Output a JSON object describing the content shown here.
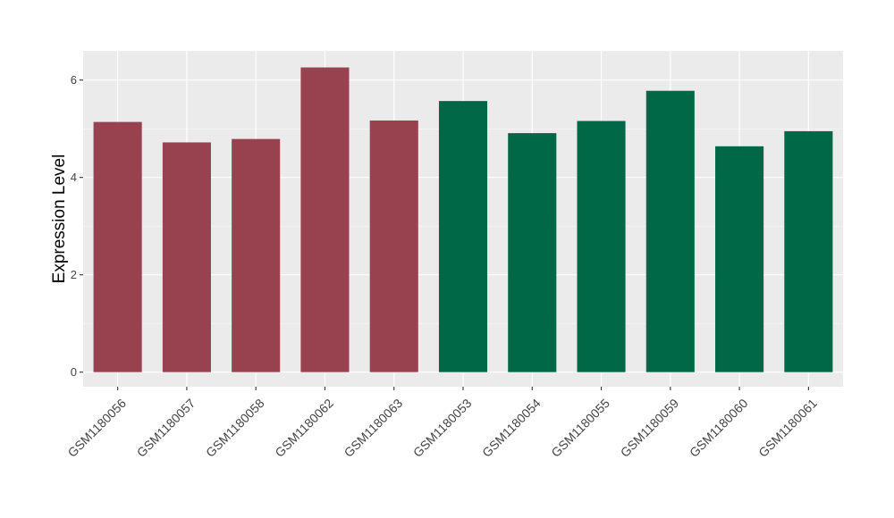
{
  "chart_data": {
    "type": "bar",
    "title": "",
    "xlabel": "",
    "ylabel": "Expression Level",
    "ylim": [
      -0.3,
      6.6
    ],
    "yticks": [
      0,
      2,
      4,
      6
    ],
    "grid": true,
    "legend": "none",
    "categories": [
      "GSM1180056",
      "GSM1180057",
      "GSM1180058",
      "GSM1180062",
      "GSM1180063",
      "GSM1180053",
      "GSM1180054",
      "GSM1180055",
      "GSM1180059",
      "GSM1180060",
      "GSM1180061"
    ],
    "values": [
      5.14,
      4.72,
      4.79,
      6.26,
      5.17,
      5.57,
      4.91,
      5.16,
      5.78,
      4.64,
      4.95
    ],
    "colors": [
      "#98414f",
      "#98414f",
      "#98414f",
      "#98414f",
      "#98414f",
      "#006847",
      "#006847",
      "#006847",
      "#006847",
      "#006847",
      "#006847"
    ]
  }
}
